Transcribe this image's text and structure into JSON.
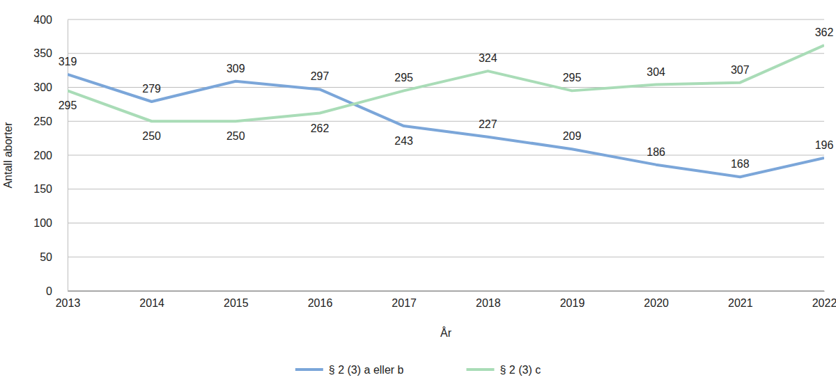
{
  "chart_data": {
    "type": "line",
    "x_label": "År",
    "y_label": "Antall aborter",
    "categories": [
      "2013",
      "2014",
      "2015",
      "2016",
      "2017",
      "2018",
      "2019",
      "2020",
      "2021",
      "2022"
    ],
    "series": [
      {
        "name": "§ 2 (3) a eller b",
        "color": "#7ba6d9",
        "values": [
          319,
          279,
          309,
          297,
          243,
          227,
          209,
          186,
          168,
          196
        ]
      },
      {
        "name": "§ 2 (3) c",
        "color": "#a9dcb7",
        "values": [
          295,
          250,
          250,
          262,
          295,
          324,
          295,
          304,
          307,
          362
        ]
      }
    ],
    "ylim": [
      0,
      400
    ],
    "yticks": [
      0,
      50,
      100,
      150,
      200,
      250,
      300,
      350,
      400
    ],
    "grid": true,
    "data_labels": true,
    "legend": "bottom"
  }
}
